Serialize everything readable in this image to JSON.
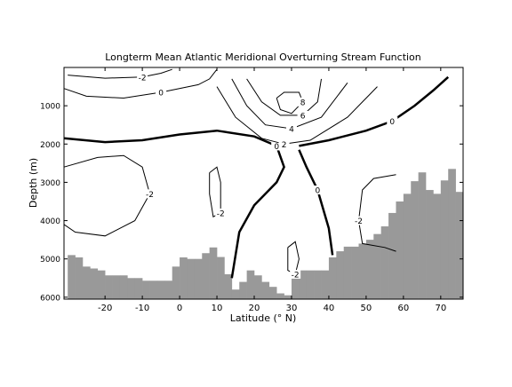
{
  "chart_data": {
    "type": "contour",
    "title": "Longterm Mean Atlantic Meridional Overturning Stream Function",
    "xlabel": "Latitude (° N)",
    "ylabel": "Depth (m)",
    "xlim": [
      -31,
      76
    ],
    "ylim": [
      6050,
      0
    ],
    "xticks": [
      -20,
      -10,
      0,
      10,
      20,
      30,
      40,
      50,
      60,
      70
    ],
    "yticks": [
      1000,
      2000,
      3000,
      4000,
      5000,
      6000
    ],
    "bathymetry": {
      "color": "#999999",
      "x": [
        -30,
        -28,
        -26,
        -24,
        -22,
        -20,
        -18,
        -16,
        -14,
        -12,
        -10,
        -8,
        -6,
        -4,
        -2,
        0,
        2,
        4,
        6,
        8,
        10,
        12,
        14,
        16,
        18,
        20,
        22,
        24,
        26,
        28,
        30,
        32,
        34,
        36,
        38,
        40,
        42,
        44,
        46,
        48,
        50,
        52,
        54,
        56,
        58,
        60,
        62,
        64,
        66,
        68,
        70,
        72,
        74
      ],
      "values": [
        4900,
        4960,
        5200,
        5250,
        5300,
        5430,
        5430,
        5430,
        5500,
        5500,
        5570,
        5570,
        5570,
        5570,
        5200,
        4960,
        5000,
        5000,
        4850,
        4700,
        4950,
        5400,
        5800,
        5600,
        5300,
        5430,
        5600,
        5730,
        5900,
        5950,
        5400,
        5300,
        5300,
        5300,
        5300,
        4960,
        4800,
        4680,
        4680,
        4600,
        4500,
        4350,
        4150,
        3800,
        3500,
        3300,
        2970,
        2740,
        3200,
        3300,
        2950,
        2650,
        3250
      ]
    },
    "contours": [
      {
        "level": 0,
        "thick": false,
        "x": [
          -31,
          -25,
          -15,
          -5,
          5,
          8,
          10
        ],
        "y": [
          550,
          750,
          800,
          650,
          450,
          300,
          50
        ]
      },
      {
        "level": -2,
        "thick": false,
        "x": [
          -30,
          -20,
          -10,
          -5,
          -2
        ],
        "y": [
          200,
          280,
          250,
          150,
          50
        ]
      },
      {
        "level": 0,
        "thick": true,
        "x": [
          -31,
          -20,
          -10,
          0,
          10,
          20,
          26,
          28,
          26,
          20,
          16,
          14
        ],
        "y": [
          1850,
          1950,
          1900,
          1750,
          1650,
          1800,
          2050,
          2600,
          3000,
          3600,
          4300,
          5500
        ]
      },
      {
        "level": 0,
        "thick": true,
        "x": [
          32,
          34,
          37,
          40,
          41
        ],
        "y": [
          2150,
          2600,
          3200,
          4200,
          4900
        ]
      },
      {
        "level": 0,
        "thick": true,
        "x": [
          32,
          40,
          50,
          57,
          63,
          68,
          72
        ],
        "y": [
          2050,
          1900,
          1650,
          1400,
          1000,
          600,
          250
        ]
      },
      {
        "level": -2,
        "thick": false,
        "x": [
          -31,
          -22,
          -15,
          -10,
          -8,
          -12,
          -20,
          -28,
          -31
        ],
        "y": [
          2600,
          2350,
          2300,
          2600,
          3300,
          4000,
          4400,
          4300,
          4100
        ]
      },
      {
        "level": -2,
        "thick": false,
        "x": [
          8,
          10,
          11,
          11,
          9,
          8,
          8
        ],
        "y": [
          2750,
          2600,
          3000,
          3800,
          3900,
          3300,
          2750
        ]
      },
      {
        "level": -2,
        "thick": false,
        "x": [
          29,
          31,
          32,
          31,
          29,
          29
        ],
        "y": [
          4700,
          4550,
          5000,
          5400,
          5300,
          4700
        ]
      },
      {
        "level": -2,
        "thick": false,
        "x": [
          58,
          52,
          49,
          48,
          49,
          55,
          58
        ],
        "y": [
          2800,
          2900,
          3200,
          4000,
          4600,
          4700,
          4800
        ]
      },
      {
        "level": 2,
        "thick": false,
        "x": [
          10,
          15,
          22,
          28,
          35,
          45,
          53
        ],
        "y": [
          500,
          1300,
          1850,
          2000,
          1900,
          1300,
          500
        ]
      },
      {
        "level": 4,
        "thick": false,
        "x": [
          14,
          18,
          23,
          30,
          38,
          45
        ],
        "y": [
          300,
          1000,
          1500,
          1600,
          1300,
          400
        ]
      },
      {
        "level": 6,
        "thick": false,
        "x": [
          18,
          22,
          27,
          33,
          37,
          38
        ],
        "y": [
          300,
          900,
          1250,
          1250,
          900,
          300
        ]
      },
      {
        "level": 8,
        "thick": false,
        "x": [
          26,
          28,
          32,
          33,
          30,
          27,
          26
        ],
        "y": [
          800,
          650,
          650,
          900,
          1200,
          1100,
          800
        ]
      }
    ]
  }
}
